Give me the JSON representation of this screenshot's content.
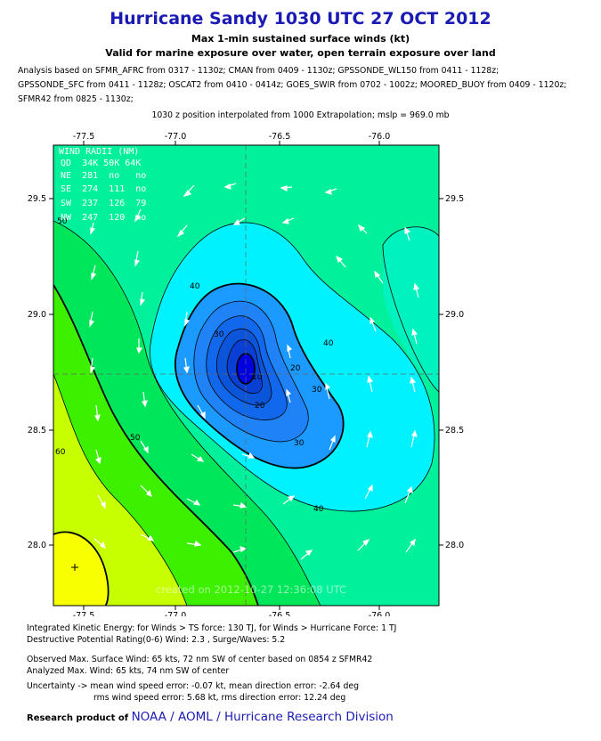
{
  "header": {
    "title": "Hurricane Sandy 1030 UTC 27 OCT 2012",
    "subtitle1": "Max 1-min sustained surface winds (kt)",
    "subtitle2": "Valid for marine exposure over water, open terrain exposure over land",
    "analysis_line1": "Analysis based on SFMR_AFRC from 0317 - 1130z; CMAN from 0409 - 1130z; GPSSONDE_WL150 from 0411 - 1128z;",
    "analysis_line2": "GPSSONDE_SFC from 0411 - 1128z; OSCAT2 from 0410 - 0414z; GOES_SWIR from 0702 - 1002z; MOORED_BUOY from 0409 - 1120z;",
    "analysis_line3": "SFMR42 from 0825 - 1130z;",
    "position_line": "1030 z position interpolated from 1000 Extrapolation; mslp = 969.0 mb"
  },
  "map": {
    "x_ticks": [
      "-77.5",
      "-77.0",
      "-76.5",
      "-76.0"
    ],
    "y_ticks": [
      "29.5",
      "29.0",
      "28.5",
      "28.0"
    ],
    "lon_range": [
      -77.62,
      -75.68
    ],
    "lat_range": [
      27.73,
      29.73
    ],
    "center": {
      "lon": -76.63,
      "lat": 28.75
    },
    "contour_labels": [
      "40",
      "30",
      "20",
      "10",
      "30",
      "20",
      "40",
      "30",
      "40",
      "50",
      "60",
      "50"
    ],
    "watermark": "created on 2012-10-27 12:36:08 UTC",
    "wind_radii": {
      "title": "WIND RADII (NM)",
      "header": "QD  34K 50K 64K",
      "rows": [
        "NE  281  no   no",
        "SE  274  111  no",
        "SW  237  126  79",
        "NW  247  120  no"
      ]
    },
    "colors": {
      "cat_10": "#0000e6",
      "cat_20": "#0b3fd0",
      "cat_30": "#0f63ea",
      "cat_40": "#1b9bff",
      "cat_50": "#00e6ff",
      "cat_60": "#00f8ff",
      "band_green1": "#00f09c",
      "band_green2": "#00e65a",
      "band_green3": "#3cf000",
      "band_lime": "#c8ff00",
      "band_yellow": "#f8ff00"
    }
  },
  "footer": {
    "ike_line": "Integrated Kinetic Energy: for Winds > TS force: 130 TJ, for Winds > Hurricane Force: 1 TJ",
    "dpr_line": "Destructive Potential Rating(0-6)  Wind: 2.3 , Surge/Waves: 5.2",
    "obs_line": "Observed Max. Surface Wind: 65 kts, 72 nm SW of center based on 0854 z SFMR42",
    "ana_line": "Analyzed Max. Wind: 65 kts, 74 nm  SW of center",
    "unc_line1": "Uncertainty -> mean wind speed error:  -0.07 kt, mean direction error:  -2.64 deg",
    "unc_line2": "rms wind speed error: 5.68 kt, rms direction error: 12.24 deg",
    "research_prefix": "Research product of",
    "research_org": "NOAA  /  AOML  /  Hurricane Research Division"
  }
}
